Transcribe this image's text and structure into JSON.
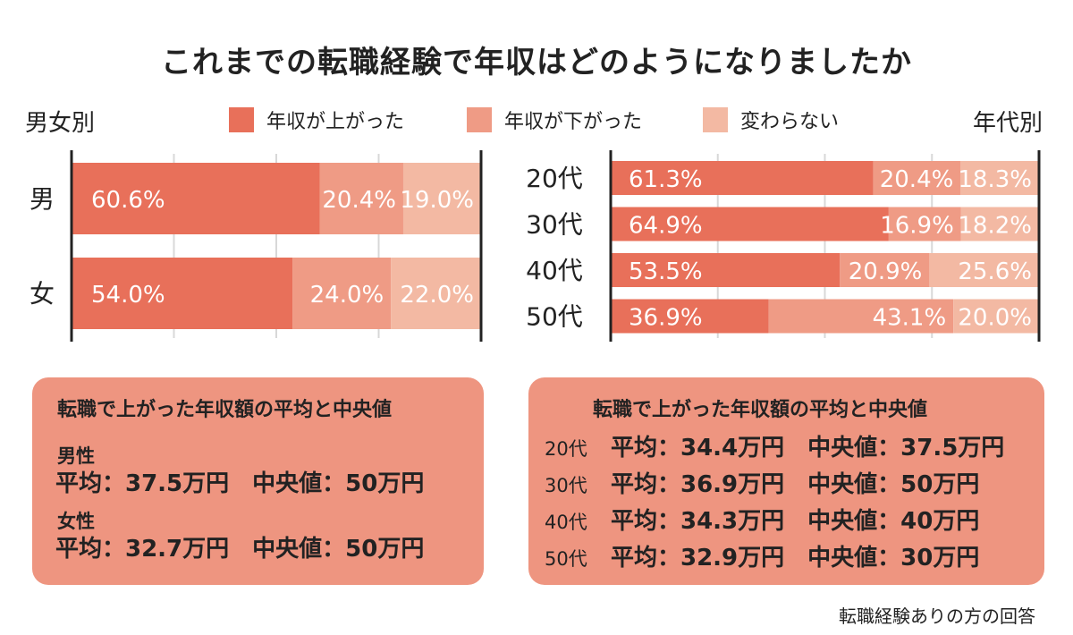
{
  "title": "これまでの転職経験で年収はどのようになりましたか",
  "left_section_label": "男女別",
  "right_section_label": "年代別",
  "legend": [
    {
      "label": "年収が上がった",
      "color": "#e8705a"
    },
    {
      "label": "年収が下がった",
      "color": "#ef9b85"
    },
    {
      "label": "変わらない",
      "color": "#f3b9a3"
    }
  ],
  "chart_data": [
    {
      "type": "bar",
      "orientation": "horizontal",
      "stacked": true,
      "categories": [
        "男",
        "女"
      ],
      "series": [
        {
          "name": "年収が上がった",
          "values": [
            60.6,
            54.0
          ],
          "labels": [
            "60.6%",
            "54.0%"
          ],
          "color": "#e8705a"
        },
        {
          "name": "年収が下がった",
          "values": [
            20.4,
            24.0
          ],
          "labels": [
            "20.4%",
            "24.0%"
          ],
          "color": "#ef9b85"
        },
        {
          "name": "変わらない",
          "values": [
            19.0,
            22.0
          ],
          "labels": [
            "19.0%",
            "22.0%"
          ],
          "color": "#f3b9a3"
        }
      ],
      "xlim": [
        0,
        100
      ],
      "grid": true
    },
    {
      "type": "bar",
      "orientation": "horizontal",
      "stacked": true,
      "categories": [
        "20代",
        "30代",
        "40代",
        "50代"
      ],
      "series": [
        {
          "name": "年収が上がった",
          "values": [
            61.3,
            64.9,
            53.5,
            36.9
          ],
          "labels": [
            "61.3%",
            "64.9%",
            "53.5%",
            "36.9%"
          ],
          "color": "#e8705a"
        },
        {
          "name": "年収が下がった",
          "values": [
            20.4,
            16.9,
            20.9,
            43.1
          ],
          "labels": [
            "20.4%",
            "16.9%",
            "20.9%",
            "43.1%"
          ],
          "color": "#ef9b85"
        },
        {
          "name": "変わらない",
          "values": [
            18.3,
            18.2,
            25.6,
            20.0
          ],
          "labels": [
            "18.3%",
            "18.2%",
            "25.6%",
            "20.0%"
          ],
          "color": "#f3b9a3"
        }
      ],
      "xlim": [
        0,
        100
      ],
      "grid": true
    }
  ],
  "left_panel": {
    "heading": "転職で上がった年収額の平均と中央値",
    "groups": [
      {
        "label": "男性",
        "stats": "平均：37.5万円　中央値：50万円"
      },
      {
        "label": "女性",
        "stats": "平均：32.7万円　中央値：50万円"
      }
    ]
  },
  "right_panel": {
    "heading": "転職で上がった年収額の平均と中央値",
    "rows": [
      {
        "age": "20代",
        "stats": "平均：34.4万円　中央値：37.5万円"
      },
      {
        "age": "30代",
        "stats": "平均：36.9万円　中央値：50万円"
      },
      {
        "age": "40代",
        "stats": "平均：34.3万円　中央値：40万円"
      },
      {
        "age": "50代",
        "stats": "平均：32.9万円　中央値：30万円"
      }
    ]
  },
  "footnote": "転職経験ありの方の回答"
}
